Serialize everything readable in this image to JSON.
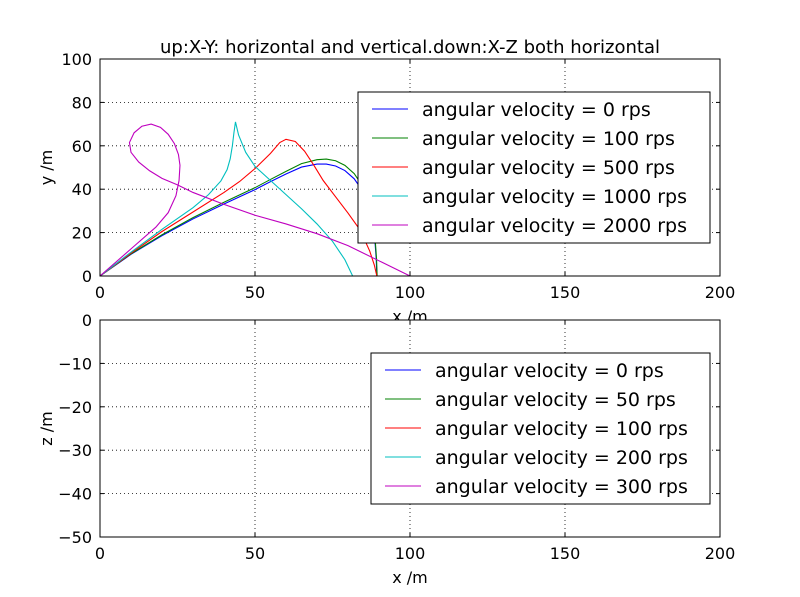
{
  "figure_title": "up:X-Y: horizontal and vertical.down:X-Z both horizontal",
  "chart_data": [
    {
      "type": "line",
      "title": "up:X-Y: horizontal and vertical.down:X-Z both horizontal",
      "xlabel": "x /m",
      "ylabel": "y /m",
      "xlim": [
        0,
        200
      ],
      "ylim": [
        0,
        100
      ],
      "xticks": [
        0,
        50,
        100,
        150,
        200
      ],
      "yticks": [
        0,
        20,
        40,
        60,
        80,
        100
      ],
      "grid": true,
      "legend_position": "upper-right",
      "series": [
        {
          "name": "angular velocity = 0 rps",
          "color": "#0000ff",
          "points": [
            [
              0,
              0
            ],
            [
              10,
              10
            ],
            [
              20,
              18.6
            ],
            [
              30,
              26.3
            ],
            [
              40,
              33.2
            ],
            [
              50,
              39.8
            ],
            [
              55,
              43.5
            ],
            [
              60,
              47
            ],
            [
              65,
              50.2
            ],
            [
              70,
              51.6
            ],
            [
              73,
              51.6
            ],
            [
              76,
              50.7
            ],
            [
              79,
              48.6
            ],
            [
              82,
              44.8
            ],
            [
              85,
              38.6
            ],
            [
              87,
              31
            ],
            [
              88,
              24
            ],
            [
              88.7,
              16
            ],
            [
              89.1,
              8
            ],
            [
              89.3,
              0
            ]
          ]
        },
        {
          "name": "angular velocity = 100 rps",
          "color": "#008000",
          "points": [
            [
              0,
              0
            ],
            [
              10,
              10.2
            ],
            [
              20,
              19
            ],
            [
              30,
              26.9
            ],
            [
              40,
              34
            ],
            [
              50,
              40.7
            ],
            [
              55,
              44.5
            ],
            [
              60,
              48.2
            ],
            [
              65,
              51.8
            ],
            [
              70,
              53.6
            ],
            [
              73,
              53.9
            ],
            [
              76,
              53.1
            ],
            [
              79,
              51
            ],
            [
              82,
              47.2
            ],
            [
              85,
              40.8
            ],
            [
              87,
              33
            ],
            [
              88,
              25
            ],
            [
              88.8,
              16
            ],
            [
              89.2,
              8
            ],
            [
              89.4,
              0
            ]
          ]
        },
        {
          "name": "angular velocity = 500 rps",
          "color": "#ff0000",
          "points": [
            [
              0,
              0
            ],
            [
              10,
              10.5
            ],
            [
              20,
              20.5
            ],
            [
              30,
              29.5
            ],
            [
              40,
              38.5
            ],
            [
              45,
              43.5
            ],
            [
              50,
              49.5
            ],
            [
              55,
              56.5
            ],
            [
              58,
              61.5
            ],
            [
              60,
              63
            ],
            [
              63,
              62
            ],
            [
              66,
              57.5
            ],
            [
              69,
              51
            ],
            [
              72,
              44
            ],
            [
              76,
              36.5
            ],
            [
              80,
              29
            ],
            [
              84,
              21
            ],
            [
              87,
              11.5
            ],
            [
              88.5,
              5
            ],
            [
              89.3,
              0
            ]
          ]
        },
        {
          "name": "angular velocity = 1000 rps",
          "color": "#00bfbf",
          "points": [
            [
              0,
              0
            ],
            [
              10,
              11
            ],
            [
              20,
              21.5
            ],
            [
              30,
              31.5
            ],
            [
              35,
              37.5
            ],
            [
              39,
              43.8
            ],
            [
              41,
              49
            ],
            [
              42,
              54
            ],
            [
              42.7,
              60
            ],
            [
              43.2,
              66
            ],
            [
              43.7,
              71
            ],
            [
              44.7,
              65
            ],
            [
              47,
              57
            ],
            [
              50,
              50.5
            ],
            [
              55,
              44
            ],
            [
              60,
              37.5
            ],
            [
              65,
              31
            ],
            [
              70,
              24
            ],
            [
              75,
              16
            ],
            [
              79,
              7.5
            ],
            [
              81,
              1.5
            ],
            [
              81.5,
              0
            ]
          ]
        },
        {
          "name": "angular velocity = 2000 rps",
          "color": "#bf00bf",
          "points": [
            [
              0,
              0
            ],
            [
              10,
              12.5
            ],
            [
              18,
              22.5
            ],
            [
              22,
              29.2
            ],
            [
              24.5,
              37
            ],
            [
              25.5,
              44
            ],
            [
              25.8,
              51
            ],
            [
              25.3,
              56
            ],
            [
              24,
              61
            ],
            [
              22,
              65.3
            ],
            [
              19.5,
              68.5
            ],
            [
              16.5,
              70
            ],
            [
              13.5,
              69
            ],
            [
              11,
              66
            ],
            [
              9.5,
              61.5
            ],
            [
              10,
              57
            ],
            [
              12.5,
              52.5
            ],
            [
              16,
              48.5
            ],
            [
              20,
              45
            ],
            [
              25,
              42
            ],
            [
              30,
              38.5
            ],
            [
              40,
              33
            ],
            [
              50,
              28
            ],
            [
              60,
              24
            ],
            [
              70,
              19.5
            ],
            [
              80,
              14
            ],
            [
              90,
              7
            ],
            [
              100,
              0
            ]
          ]
        }
      ]
    },
    {
      "type": "line",
      "title": "",
      "xlabel": "x /m",
      "ylabel": "z /m",
      "xlim": [
        0,
        200
      ],
      "ylim": [
        -50,
        0
      ],
      "xticks": [
        0,
        50,
        100,
        150,
        200
      ],
      "yticks": [
        0,
        -10,
        -20,
        -30,
        -40,
        -50
      ],
      "ytick_labels": [
        "0",
        "−10",
        "−20",
        "−30",
        "−40",
        "−50"
      ],
      "grid": true,
      "legend_position": "upper-right",
      "series": [
        {
          "name": "angular velocity = 0 rps",
          "color": "#0000ff",
          "points": [
            [
              0,
              0
            ],
            [
              89,
              0
            ]
          ]
        },
        {
          "name": "angular velocity = 50 rps",
          "color": "#008000",
          "points": [
            [
              0,
              0
            ],
            [
              89,
              0
            ]
          ]
        },
        {
          "name": "angular velocity = 100 rps",
          "color": "#ff0000",
          "points": [
            [
              0,
              0
            ],
            [
              89,
              0
            ]
          ]
        },
        {
          "name": "angular velocity = 200 rps",
          "color": "#00bfbf",
          "points": [
            [
              0,
              0
            ],
            [
              89,
              0
            ]
          ]
        },
        {
          "name": "angular velocity = 300 rps",
          "color": "#bf00bf",
          "points": [
            [
              0,
              0
            ],
            [
              89,
              0
            ]
          ]
        }
      ]
    }
  ]
}
